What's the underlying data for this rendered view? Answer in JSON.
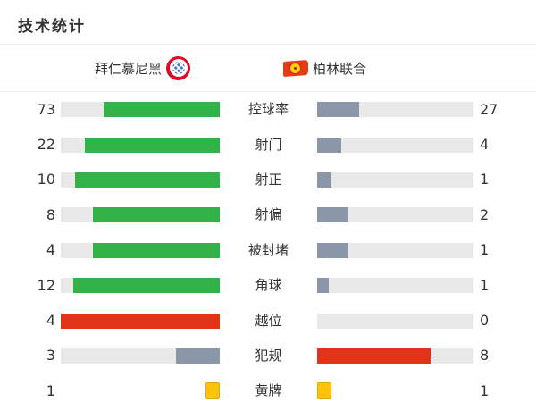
{
  "title": "技术统计",
  "teams": {
    "home": {
      "name": "拜仁慕尼黑"
    },
    "away": {
      "name": "柏林联合"
    }
  },
  "colors": {
    "green": "#33b347",
    "red": "#df3417",
    "gray": "#8b97a8",
    "yellow": "#fcc30b",
    "track": "#e9e9e9"
  },
  "chart_data": {
    "type": "bar",
    "title": "技术统计",
    "legend": [
      "拜仁慕尼黑",
      "柏林联合"
    ],
    "categories": [
      "控球率",
      "射门",
      "射正",
      "射偏",
      "被封堵",
      "角球",
      "越位",
      "犯规",
      "黄牌"
    ],
    "series": [
      {
        "name": "拜仁慕尼黑",
        "values": [
          73,
          22,
          10,
          8,
          4,
          12,
          4,
          3,
          1
        ]
      },
      {
        "name": "柏林联合",
        "values": [
          27,
          4,
          1,
          2,
          1,
          1,
          0,
          8,
          1
        ]
      }
    ]
  },
  "stats": [
    {
      "label": "控球率",
      "home": 73,
      "away": 27,
      "home_color": "green",
      "away_color": "gray",
      "type": "bar"
    },
    {
      "label": "射门",
      "home": 22,
      "away": 4,
      "home_color": "green",
      "away_color": "gray",
      "type": "bar"
    },
    {
      "label": "射正",
      "home": 10,
      "away": 1,
      "home_color": "green",
      "away_color": "gray",
      "type": "bar"
    },
    {
      "label": "射偏",
      "home": 8,
      "away": 2,
      "home_color": "green",
      "away_color": "gray",
      "type": "bar"
    },
    {
      "label": "被封堵",
      "home": 4,
      "away": 1,
      "home_color": "green",
      "away_color": "gray",
      "type": "bar"
    },
    {
      "label": "角球",
      "home": 12,
      "away": 1,
      "home_color": "green",
      "away_color": "gray",
      "type": "bar"
    },
    {
      "label": "越位",
      "home": 4,
      "away": 0,
      "home_color": "red",
      "away_color": "gray",
      "type": "bar"
    },
    {
      "label": "犯规",
      "home": 3,
      "away": 8,
      "home_color": "gray",
      "away_color": "red",
      "type": "bar"
    },
    {
      "label": "黄牌",
      "home": 1,
      "away": 1,
      "home_color": "yellow",
      "away_color": "yellow",
      "type": "cards"
    }
  ]
}
